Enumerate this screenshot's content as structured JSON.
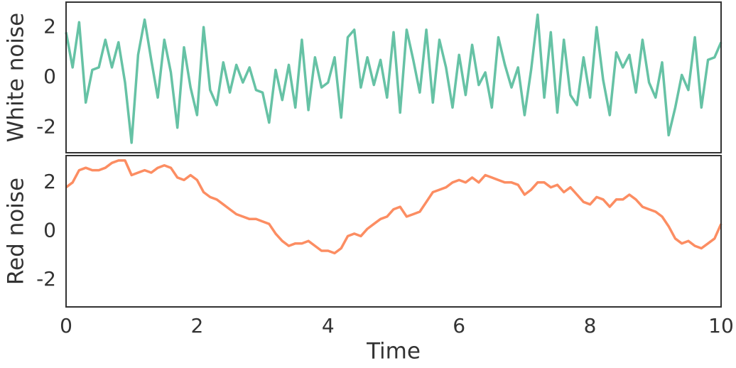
{
  "chart_data": [
    {
      "type": "line",
      "ylabel": "White noise",
      "x": [
        0,
        0.1,
        0.2,
        0.3,
        0.4,
        0.5,
        0.6,
        0.7,
        0.8,
        0.9,
        1,
        1.1,
        1.2,
        1.3,
        1.4,
        1.5,
        1.6,
        1.7,
        1.8,
        1.9,
        2,
        2.1,
        2.2,
        2.3,
        2.4,
        2.5,
        2.6,
        2.7,
        2.8,
        2.9,
        3,
        3.1,
        3.2,
        3.3,
        3.4,
        3.5,
        3.6,
        3.7,
        3.8,
        3.9,
        4,
        4.1,
        4.2,
        4.3,
        4.4,
        4.5,
        4.6,
        4.7,
        4.8,
        4.9,
        5,
        5.1,
        5.2,
        5.3,
        5.4,
        5.5,
        5.6,
        5.7,
        5.8,
        5.9,
        6,
        6.1,
        6.2,
        6.3,
        6.4,
        6.5,
        6.6,
        6.7,
        6.8,
        6.9,
        7,
        7.1,
        7.2,
        7.3,
        7.4,
        7.5,
        7.6,
        7.7,
        7.8,
        7.9,
        8,
        8.1,
        8.2,
        8.3,
        8.4,
        8.5,
        8.6,
        8.7,
        8.8,
        8.9,
        9,
        9.1,
        9.2,
        9.3,
        9.4,
        9.5,
        9.6,
        9.7,
        9.8,
        9.9,
        10
      ],
      "series": [
        {
          "color": "#66c2a5",
          "values": [
            1.8,
            0.4,
            2.2,
            -1.0,
            0.3,
            0.4,
            1.5,
            0.4,
            1.4,
            -0.2,
            -2.6,
            0.9,
            2.3,
            0.7,
            -0.8,
            1.5,
            0.2,
            -2.0,
            1.2,
            -0.4,
            -1.5,
            2.0,
            -0.5,
            -1.1,
            0.6,
            -0.6,
            0.5,
            -0.2,
            0.4,
            -0.5,
            -0.6,
            -1.8,
            0.3,
            -0.9,
            0.5,
            -1.2,
            1.5,
            -1.3,
            0.8,
            -0.4,
            -0.2,
            0.8,
            -1.6,
            1.6,
            1.9,
            -0.4,
            0.8,
            -0.3,
            0.7,
            -0.8,
            1.8,
            -1.4,
            1.9,
            0.7,
            -0.6,
            1.9,
            -1.0,
            1.5,
            0.4,
            -1.2,
            0.9,
            -0.7,
            1.3,
            -0.3,
            0.2,
            -1.2,
            1.6,
            0.5,
            -0.4,
            0.4,
            -1.5,
            0.3,
            2.5,
            -0.8,
            1.8,
            -1.4,
            1.5,
            -0.7,
            -1.1,
            0.8,
            -0.8,
            2.0,
            -0.1,
            -1.5,
            1.0,
            0.4,
            0.9,
            -0.6,
            1.5,
            -0.2,
            -0.8,
            0.6,
            -2.3,
            -1.2,
            0.1,
            -0.5,
            1.6,
            -1.2,
            0.7,
            0.8,
            1.4
          ]
        }
      ],
      "xlim": [
        0,
        10
      ],
      "ylim": [
        -3,
        3
      ],
      "yticks": [
        -2,
        0,
        2
      ]
    },
    {
      "type": "line",
      "ylabel": "Red noise",
      "xlabel": "Time",
      "x": [
        0,
        0.1,
        0.2,
        0.3,
        0.4,
        0.5,
        0.6,
        0.7,
        0.8,
        0.9,
        1,
        1.1,
        1.2,
        1.3,
        1.4,
        1.5,
        1.6,
        1.7,
        1.8,
        1.9,
        2,
        2.1,
        2.2,
        2.3,
        2.4,
        2.5,
        2.6,
        2.7,
        2.8,
        2.9,
        3,
        3.1,
        3.2,
        3.3,
        3.4,
        3.5,
        3.6,
        3.7,
        3.8,
        3.9,
        4,
        4.1,
        4.2,
        4.3,
        4.4,
        4.5,
        4.6,
        4.7,
        4.8,
        4.9,
        5,
        5.1,
        5.2,
        5.3,
        5.4,
        5.5,
        5.6,
        5.7,
        5.8,
        5.9,
        6,
        6.1,
        6.2,
        6.3,
        6.4,
        6.5,
        6.6,
        6.7,
        6.8,
        6.9,
        7,
        7.1,
        7.2,
        7.3,
        7.4,
        7.5,
        7.6,
        7.7,
        7.8,
        7.9,
        8,
        8.1,
        8.2,
        8.3,
        8.4,
        8.5,
        8.6,
        8.7,
        8.8,
        8.9,
        9,
        9.1,
        9.2,
        9.3,
        9.4,
        9.5,
        9.6,
        9.7,
        9.8,
        9.9,
        10
      ],
      "series": [
        {
          "color": "#fc8d62",
          "values": [
            1.8,
            2.0,
            2.5,
            2.6,
            2.5,
            2.5,
            2.6,
            2.8,
            2.9,
            2.9,
            2.3,
            2.4,
            2.5,
            2.4,
            2.6,
            2.7,
            2.6,
            2.2,
            2.1,
            2.3,
            2.1,
            1.6,
            1.4,
            1.3,
            1.1,
            0.9,
            0.7,
            0.6,
            0.5,
            0.5,
            0.4,
            0.3,
            -0.1,
            -0.4,
            -0.6,
            -0.5,
            -0.5,
            -0.4,
            -0.6,
            -0.8,
            -0.8,
            -0.9,
            -0.7,
            -0.2,
            -0.1,
            -0.2,
            0.1,
            0.3,
            0.5,
            0.6,
            0.9,
            1.0,
            0.6,
            0.7,
            0.8,
            1.2,
            1.6,
            1.7,
            1.8,
            2.0,
            2.1,
            2.0,
            2.2,
            2.0,
            2.3,
            2.2,
            2.1,
            2.0,
            2.0,
            1.9,
            1.5,
            1.7,
            2.0,
            2.0,
            1.8,
            1.9,
            1.6,
            1.8,
            1.5,
            1.2,
            1.1,
            1.4,
            1.3,
            1.0,
            1.3,
            1.3,
            1.5,
            1.3,
            1.0,
            0.9,
            0.8,
            0.6,
            0.2,
            -0.3,
            -0.5,
            -0.4,
            -0.6,
            -0.7,
            -0.5,
            -0.3,
            0.3
          ]
        }
      ],
      "xlim": [
        0,
        10
      ],
      "ylim": [
        -3.1,
        3.1
      ],
      "yticks": [
        -2,
        0,
        2
      ],
      "xticks": [
        0,
        2,
        4,
        6,
        8,
        10
      ]
    }
  ]
}
